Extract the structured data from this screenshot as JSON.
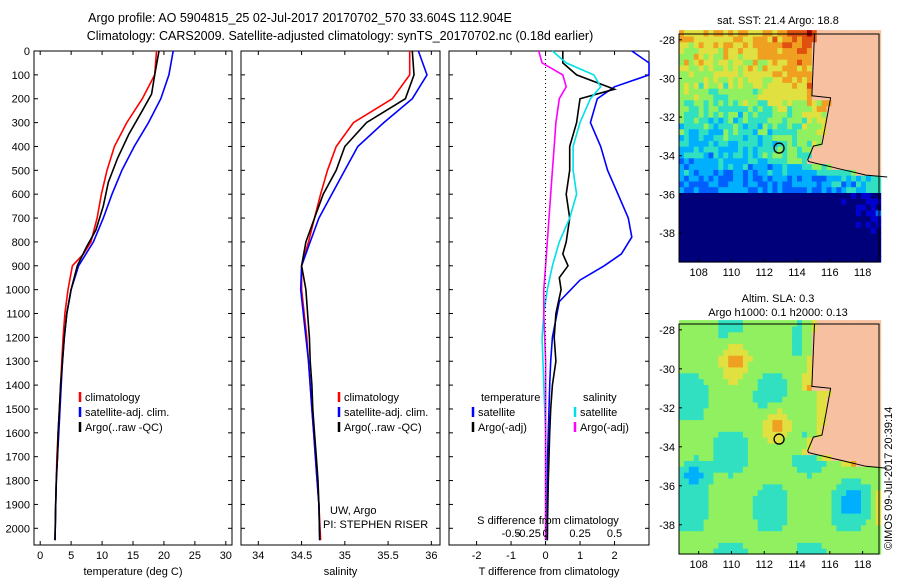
{
  "header": {
    "line1": "Argo profile: AO 5904815_25 02-Jul-2017 20170702_570 33.604S 112.904E",
    "line2": "Climatology: CARS2009. Satellite-adjusted climatology: synTS_20170702.nc (0.18d earlier)"
  },
  "footer_text": "©IMOS 09-Jul-2017 20:39:14",
  "colors": {
    "climatology": "#ff0000",
    "satellite": "#0000ff",
    "argo": "#000000",
    "salinity_satellite": "#00e0e8",
    "salinity_argo": "#ff00ff",
    "land": "#f7c0a0"
  },
  "chart_data": [
    {
      "type": "line",
      "id": "temperature",
      "xlabel": "temperature (deg C)",
      "ylabel": "",
      "xlim": [
        -1,
        31
      ],
      "ylim": [
        2070,
        0
      ],
      "xticks": [
        0,
        5,
        10,
        15,
        20,
        25,
        30
      ],
      "yticks": [
        0,
        100,
        200,
        300,
        400,
        500,
        600,
        700,
        800,
        900,
        1000,
        1100,
        1200,
        1300,
        1400,
        1500,
        1600,
        1700,
        1800,
        1900,
        2000
      ],
      "legend": {
        "placement": "lower-left",
        "entries": [
          "climatology",
          "satellite-adj. clim.",
          "Argo(..raw -QC)"
        ]
      },
      "series": [
        {
          "name": "climatology",
          "color": "#ff0000",
          "x": [
            18.8,
            18.5,
            16.5,
            14.0,
            12.0,
            10.8,
            9.9,
            9.2,
            8.2,
            7.0,
            5.2,
            4.5,
            4.0,
            3.7,
            3.5,
            3.3,
            3.1,
            2.9,
            2.7,
            2.6,
            2.5,
            2.4
          ],
          "y": [
            0,
            100,
            200,
            300,
            400,
            500,
            600,
            700,
            800,
            850,
            900,
            1000,
            1100,
            1200,
            1300,
            1400,
            1500,
            1600,
            1700,
            1800,
            1900,
            2050
          ]
        },
        {
          "name": "satellite-adj. clim.",
          "color": "#0000ff",
          "x": [
            21.5,
            20.8,
            19.5,
            17.5,
            15.2,
            13.2,
            11.6,
            10.2,
            8.6,
            6.2,
            5.0,
            4.3,
            3.9,
            3.6,
            3.4,
            3.2,
            3.0,
            2.8,
            2.6,
            2.5,
            2.4
          ],
          "y": [
            0,
            100,
            200,
            300,
            400,
            500,
            600,
            700,
            800,
            900,
            1000,
            1100,
            1200,
            1300,
            1400,
            1500,
            1600,
            1700,
            1800,
            1900,
            2050
          ]
        },
        {
          "name": "Argo(..raw -QC)",
          "color": "#000000",
          "x": [
            19.2,
            18.5,
            18.0,
            16.5,
            14.3,
            12.5,
            11.0,
            10.2,
            9.0,
            7.5,
            6.0,
            5.0,
            4.3,
            3.9,
            3.6,
            3.3,
            3.1,
            2.9,
            2.8,
            2.6,
            2.5,
            2.4
          ],
          "y": [
            0,
            100,
            180,
            250,
            350,
            450,
            550,
            650,
            750,
            820,
            900,
            1000,
            1100,
            1200,
            1300,
            1400,
            1500,
            1600,
            1700,
            1800,
            1900,
            2050
          ]
        }
      ]
    },
    {
      "type": "line",
      "id": "salinity",
      "xlabel": "salinity",
      "xlim": [
        33.8,
        36.1
      ],
      "ylim": [
        2070,
        0
      ],
      "xticks": [
        34,
        34.5,
        35,
        35.5,
        36
      ],
      "legend": {
        "placement": "lower-right",
        "entries": [
          "climatology",
          "satellite-adj. clim.",
          "Argo(..raw -QC)"
        ]
      },
      "annotation": [
        "UW, Argo",
        "PI: STEPHEN RISER"
      ],
      "series": [
        {
          "name": "climatology",
          "color": "#ff0000",
          "x": [
            35.75,
            35.75,
            35.55,
            35.1,
            34.9,
            34.8,
            34.72,
            34.65,
            34.58,
            34.5,
            34.5,
            34.53,
            34.56,
            34.58,
            34.6,
            34.62,
            34.64,
            34.66,
            34.68,
            34.7,
            34.72
          ],
          "y": [
            0,
            100,
            200,
            300,
            400,
            500,
            600,
            700,
            800,
            900,
            1000,
            1100,
            1200,
            1300,
            1400,
            1500,
            1600,
            1700,
            1800,
            1900,
            2050
          ]
        },
        {
          "name": "satellite-adj. clim.",
          "color": "#0000ff",
          "x": [
            35.85,
            35.95,
            35.78,
            35.45,
            35.15,
            35.0,
            34.85,
            34.7,
            34.6,
            34.5,
            34.49,
            34.52,
            34.55,
            34.58,
            34.6,
            34.62,
            34.64,
            34.66,
            34.68,
            34.7,
            34.71
          ],
          "y": [
            0,
            100,
            200,
            300,
            400,
            500,
            600,
            700,
            800,
            900,
            1000,
            1100,
            1200,
            1300,
            1400,
            1500,
            1600,
            1700,
            1800,
            1900,
            2050
          ]
        },
        {
          "name": "Argo(..raw -QC)",
          "color": "#000000",
          "x": [
            35.78,
            35.8,
            35.7,
            35.25,
            35.0,
            34.9,
            34.75,
            34.65,
            34.55,
            34.5,
            34.55,
            34.57,
            34.59,
            34.6,
            34.62,
            34.63,
            34.65,
            34.67,
            34.69,
            34.7,
            34.71
          ],
          "y": [
            0,
            100,
            200,
            300,
            400,
            500,
            600,
            700,
            800,
            900,
            1000,
            1100,
            1200,
            1300,
            1400,
            1500,
            1600,
            1700,
            1800,
            1900,
            2050
          ]
        }
      ]
    },
    {
      "type": "line",
      "id": "difference",
      "xlabel": "T difference from climatology",
      "top_axis_label": "S difference from climatology",
      "xlim": [
        -2.8,
        3.0
      ],
      "ylim": [
        2070,
        0
      ],
      "xticks": [
        -2,
        -1,
        0,
        1,
        2
      ],
      "top_ticks": [
        {
          "value": -1,
          "label": "-0.5"
        },
        {
          "value": -0.5,
          "label": "-0.25"
        },
        {
          "value": 0,
          "label": "0"
        },
        {
          "value": 1,
          "label": "0.25"
        },
        {
          "value": 2,
          "label": "0.5"
        }
      ],
      "legend": {
        "placement": "lower-center",
        "entries": [
          "temperature",
          "satellite",
          "Argo(-adj)",
          "salinity",
          "satellite",
          "Argo(-adj)"
        ]
      },
      "series": [
        {
          "name": "satellite",
          "group": "temperature",
          "color": "#0000ff",
          "x": [
            2.5,
            3.0,
            3.0,
            2.0,
            1.5,
            1.3,
            1.6,
            1.8,
            2.1,
            2.4,
            2.5,
            2.2,
            1.7,
            1.0,
            0.4,
            0.2,
            0.15,
            0.12,
            0.1,
            0.08,
            0.06,
            0.05,
            0.05
          ],
          "y": [
            0,
            50,
            100,
            150,
            200,
            300,
            400,
            500,
            600,
            700,
            780,
            850,
            900,
            960,
            1050,
            1200,
            1300,
            1400,
            1500,
            1600,
            1700,
            1900,
            2050
          ]
        },
        {
          "name": "Argo(-adj)",
          "group": "temperature",
          "color": "#000000",
          "x": [
            0.5,
            0.5,
            0.9,
            2.0,
            1.0,
            0.9,
            0.7,
            0.7,
            0.6,
            0.7,
            0.6,
            0.5,
            0.65,
            0.4,
            0.45,
            0.3,
            0.25,
            0.3,
            0.2,
            0.15,
            0.12,
            0.1,
            0.08,
            0.06,
            0.05
          ],
          "y": [
            0,
            50,
            100,
            160,
            200,
            300,
            400,
            500,
            600,
            700,
            800,
            850,
            900,
            950,
            1000,
            1100,
            1200,
            1300,
            1400,
            1500,
            1600,
            1700,
            1800,
            1950,
            2050
          ]
        },
        {
          "name": "satellite",
          "group": "salinity",
          "color": "#00e0e8",
          "x": [
            0.2,
            0.6,
            1.4,
            1.6,
            1.3,
            1.0,
            0.8,
            0.8,
            0.9,
            0.7,
            0.4,
            0.2,
            0.05,
            -0.05,
            -0.1,
            -0.05,
            0.0,
            0.0,
            0.0,
            0.0
          ],
          "y": [
            0,
            50,
            100,
            150,
            200,
            300,
            400,
            500,
            600,
            700,
            800,
            900,
            1000,
            1100,
            1200,
            1400,
            1600,
            1800,
            1950,
            2050
          ]
        },
        {
          "name": "Argo(-adj)",
          "group": "salinity",
          "color": "#ff00ff",
          "x": [
            -0.2,
            -0.1,
            0.5,
            0.6,
            0.4,
            0.3,
            0.25,
            0.2,
            0.15,
            0.1,
            0.05,
            0.0,
            -0.05,
            -0.05,
            0.0,
            0.0,
            0.0,
            0.0
          ],
          "y": [
            0,
            50,
            100,
            150,
            200,
            300,
            400,
            500,
            600,
            700,
            800,
            900,
            1000,
            1100,
            1300,
            1500,
            1800,
            2050
          ]
        }
      ]
    },
    {
      "type": "heatmap",
      "id": "sst_map",
      "title": "sat. SST: 21.4  Argo: 18.8",
      "xlim": [
        106.8,
        119.0
      ],
      "ylim": [
        -39.5,
        -27.7
      ],
      "xticks": [
        108,
        110,
        112,
        114,
        116,
        118
      ],
      "yticks": [
        -28,
        -30,
        -32,
        -34,
        -36,
        -38
      ],
      "argo_position": {
        "lon": 112.904,
        "lat": -33.604
      },
      "colormap": [
        "#00007a",
        "#0000d0",
        "#0060ff",
        "#00b0ff",
        "#30e0c0",
        "#90f060",
        "#e0e040",
        "#f0a020",
        "#e05010",
        "#a00000"
      ]
    },
    {
      "type": "heatmap",
      "id": "sla_map",
      "title_lines": [
        "Altim. SLA: 0.3",
        "Argo h1000: 0.1  h2000: 0.13"
      ],
      "xlim": [
        106.8,
        119.0
      ],
      "ylim": [
        -39.5,
        -27.7
      ],
      "xticks": [
        108,
        110,
        112,
        114,
        116,
        118
      ],
      "yticks": [
        -28,
        -30,
        -32,
        -34,
        -36,
        -38
      ],
      "argo_position": {
        "lon": 112.904,
        "lat": -33.604
      },
      "colormap": [
        "#0060ff",
        "#00b0ff",
        "#30e0c0",
        "#90f060",
        "#e0e040",
        "#f0a020",
        "#e05010"
      ]
    }
  ]
}
